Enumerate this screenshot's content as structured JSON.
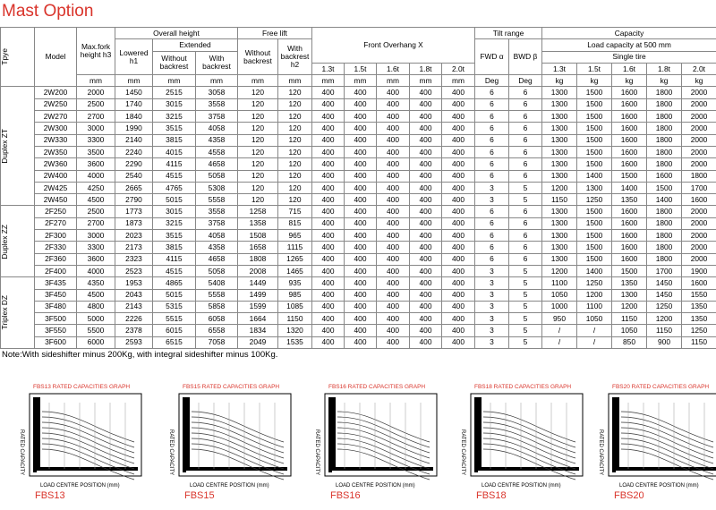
{
  "title": "Mast Option",
  "table": {
    "header": {
      "type": "Tpye",
      "model": "Model",
      "max_fork": "Max.fork height h3",
      "overall": "Overall height",
      "lowered": "Lowered h1",
      "extended": "Extended",
      "ext_without": "Without backrest",
      "ext_with": "With backrest",
      "free_lift": "Free lift",
      "fl_without": "Without backrest",
      "fl_with": "With backrest h2",
      "overhang": "Front  Overhang  X",
      "overhang_sizes": [
        "1.3t",
        "1.5t",
        "1.6t",
        "1.8t",
        "2.0t"
      ],
      "tilt": "Tilt range",
      "fwd": "FWD α",
      "bwd": "BWD β",
      "capacity": "Capacity",
      "load_capacity": "Load capacity at 500 mm",
      "single_tire": "Single tire",
      "capacity_sizes": [
        "1.3t",
        "1.5t",
        "1.6t",
        "1.8t",
        "2.0t"
      ]
    },
    "units": [
      "mm",
      "mm",
      "mm",
      "mm",
      "mm",
      "mm",
      "mm",
      "mm",
      "mm",
      "mm",
      "mm",
      "Deg",
      "Deg",
      "kg",
      "kg",
      "kg",
      "kg",
      "kg"
    ],
    "groups": [
      {
        "type": "Duplex ZT",
        "rows": [
          [
            "2W200",
            2000,
            1450,
            2515,
            3058,
            120,
            120,
            400,
            400,
            400,
            400,
            400,
            6,
            6,
            1300,
            1500,
            1600,
            1800,
            2000
          ],
          [
            "2W250",
            2500,
            1740,
            3015,
            3558,
            120,
            120,
            400,
            400,
            400,
            400,
            400,
            6,
            6,
            1300,
            1500,
            1600,
            1800,
            2000
          ],
          [
            "2W270",
            2700,
            1840,
            3215,
            3758,
            120,
            120,
            400,
            400,
            400,
            400,
            400,
            6,
            6,
            1300,
            1500,
            1600,
            1800,
            2000
          ],
          [
            "2W300",
            3000,
            1990,
            3515,
            4058,
            120,
            120,
            400,
            400,
            400,
            400,
            400,
            6,
            6,
            1300,
            1500,
            1600,
            1800,
            2000
          ],
          [
            "2W330",
            3300,
            2140,
            3815,
            4358,
            120,
            120,
            400,
            400,
            400,
            400,
            400,
            6,
            6,
            1300,
            1500,
            1600,
            1800,
            2000
          ],
          [
            "2W350",
            3500,
            2240,
            4015,
            4558,
            120,
            120,
            400,
            400,
            400,
            400,
            400,
            6,
            6,
            1300,
            1500,
            1600,
            1800,
            2000
          ],
          [
            "2W360",
            3600,
            2290,
            4115,
            4658,
            120,
            120,
            400,
            400,
            400,
            400,
            400,
            6,
            6,
            1300,
            1500,
            1600,
            1800,
            2000
          ],
          [
            "2W400",
            4000,
            2540,
            4515,
            5058,
            120,
            120,
            400,
            400,
            400,
            400,
            400,
            6,
            6,
            1300,
            1400,
            1500,
            1600,
            1800
          ],
          [
            "2W425",
            4250,
            2665,
            4765,
            5308,
            120,
            120,
            400,
            400,
            400,
            400,
            400,
            3,
            5,
            1200,
            1300,
            1400,
            1500,
            1700
          ],
          [
            "2W450",
            4500,
            2790,
            5015,
            5558,
            120,
            120,
            400,
            400,
            400,
            400,
            400,
            3,
            5,
            1150,
            1250,
            1350,
            1400,
            1600
          ]
        ]
      },
      {
        "type": "Duplex ZZ",
        "rows": [
          [
            "2F250",
            2500,
            1773,
            3015,
            3558,
            1258,
            715,
            400,
            400,
            400,
            400,
            400,
            6,
            6,
            1300,
            1500,
            1600,
            1800,
            2000
          ],
          [
            "2F270",
            2700,
            1873,
            3215,
            3758,
            1358,
            815,
            400,
            400,
            400,
            400,
            400,
            6,
            6,
            1300,
            1500,
            1600,
            1800,
            2000
          ],
          [
            "2F300",
            3000,
            2023,
            3515,
            4058,
            1508,
            965,
            400,
            400,
            400,
            400,
            400,
            6,
            6,
            1300,
            1500,
            1600,
            1800,
            2000
          ],
          [
            "2F330",
            3300,
            2173,
            3815,
            4358,
            1658,
            1115,
            400,
            400,
            400,
            400,
            400,
            6,
            6,
            1300,
            1500,
            1600,
            1800,
            2000
          ],
          [
            "2F360",
            3600,
            2323,
            4115,
            4658,
            1808,
            1265,
            400,
            400,
            400,
            400,
            400,
            6,
            6,
            1300,
            1500,
            1600,
            1800,
            2000
          ],
          [
            "2F400",
            4000,
            2523,
            4515,
            5058,
            2008,
            1465,
            400,
            400,
            400,
            400,
            400,
            3,
            5,
            1200,
            1400,
            1500,
            1700,
            1900
          ]
        ]
      },
      {
        "type": "Triplex DZ",
        "rows": [
          [
            "3F435",
            4350,
            1953,
            4865,
            5408,
            1449,
            935,
            400,
            400,
            400,
            400,
            400,
            3,
            5,
            1100,
            1250,
            1350,
            1450,
            1600
          ],
          [
            "3F450",
            4500,
            2043,
            5015,
            5558,
            1499,
            985,
            400,
            400,
            400,
            400,
            400,
            3,
            5,
            1050,
            1200,
            1300,
            1450,
            1550
          ],
          [
            "3F480",
            4800,
            2143,
            5315,
            5858,
            1599,
            1085,
            400,
            400,
            400,
            400,
            400,
            3,
            5,
            1000,
            1100,
            1200,
            1250,
            1350
          ],
          [
            "3F500",
            5000,
            2226,
            5515,
            6058,
            1664,
            1150,
            400,
            400,
            400,
            400,
            400,
            3,
            5,
            950,
            1050,
            1150,
            1200,
            1350
          ],
          [
            "3F550",
            5500,
            2378,
            6015,
            6558,
            1834,
            1320,
            400,
            400,
            400,
            400,
            400,
            3,
            5,
            "/",
            "/",
            1050,
            1150,
            1250
          ],
          [
            "3F600",
            6000,
            2593,
            6515,
            7058,
            2049,
            1535,
            400,
            400,
            400,
            400,
            400,
            3,
            5,
            "/",
            "/",
            850,
            900,
            1150
          ]
        ]
      }
    ]
  },
  "note": "Note:With sideshifter minus 200Kg, with integral sideshifter minus 100Kg.",
  "graphs": [
    {
      "title": "FBS13 RATED CAPACITIES GRAPH",
      "label": "FBS13"
    },
    {
      "title": "FBS15 RATED CAPACITIES GRAPH",
      "label": "FBS15"
    },
    {
      "title": "FBS16 RATED CAPACITIES GRAPH",
      "label": "FBS16"
    },
    {
      "title": "FBS18 RATED CAPACITIES GRAPH",
      "label": "FBS18"
    },
    {
      "title": "FBS20 RATED CAPACITIES GRAPH",
      "label": "FBS20"
    }
  ],
  "y_axis_label": "RATED CAPACITY",
  "x_axis_label": "LOAD CENTRE POSITION (mm)"
}
